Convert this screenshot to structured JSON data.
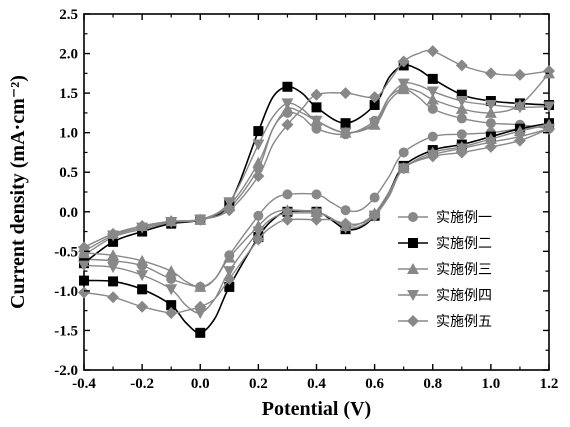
{
  "chart_data": {
    "type": "line",
    "xlabel": "Potential (V)",
    "ylabel": "Current density (mA·cm⁻²)",
    "xlim": [
      -0.4,
      1.2
    ],
    "ylim": [
      -2.0,
      2.5
    ],
    "xticks": [
      "-0.4",
      "-0.2",
      "0.0",
      "0.2",
      "0.4",
      "0.6",
      "0.8",
      "1.0",
      "1.2"
    ],
    "yticks": [
      "-2.0",
      "-1.5",
      "-1.0",
      "-0.5",
      "0.0",
      "0.5",
      "1.0",
      "1.5",
      "2.0",
      "2.5"
    ],
    "legend_position": "right",
    "grid": false,
    "series": [
      {
        "name": "实施例一",
        "marker": "circle",
        "color": "#888888",
        "forward": [
          [
            -0.4,
            -0.55
          ],
          [
            -0.3,
            -0.32
          ],
          [
            -0.2,
            -0.22
          ],
          [
            -0.1,
            -0.14
          ],
          [
            0.0,
            -0.1
          ],
          [
            0.1,
            0.05
          ],
          [
            0.2,
            0.55
          ],
          [
            0.25,
            1.05
          ],
          [
            0.3,
            1.25
          ],
          [
            0.35,
            1.2
          ],
          [
            0.4,
            1.05
          ],
          [
            0.5,
            0.98
          ],
          [
            0.6,
            1.15
          ],
          [
            0.65,
            1.45
          ],
          [
            0.7,
            1.55
          ],
          [
            0.75,
            1.45
          ],
          [
            0.8,
            1.3
          ],
          [
            0.9,
            1.18
          ],
          [
            1.0,
            1.12
          ],
          [
            1.1,
            1.1
          ],
          [
            1.2,
            1.05
          ]
        ],
        "reverse": [
          [
            1.2,
            1.08
          ],
          [
            1.1,
            1.05
          ],
          [
            1.0,
            1.0
          ],
          [
            0.9,
            0.98
          ],
          [
            0.8,
            0.95
          ],
          [
            0.7,
            0.75
          ],
          [
            0.65,
            0.45
          ],
          [
            0.6,
            0.18
          ],
          [
            0.55,
            0.02
          ],
          [
            0.5,
            0.02
          ],
          [
            0.45,
            0.12
          ],
          [
            0.4,
            0.22
          ],
          [
            0.3,
            0.22
          ],
          [
            0.25,
            0.15
          ],
          [
            0.2,
            -0.05
          ],
          [
            0.1,
            -0.55
          ],
          [
            0.05,
            -0.85
          ],
          [
            0.0,
            -0.95
          ],
          [
            -0.1,
            -0.85
          ],
          [
            -0.2,
            -0.68
          ],
          [
            -0.3,
            -0.62
          ],
          [
            -0.4,
            -0.6
          ]
        ]
      },
      {
        "name": "实施例二",
        "marker": "square",
        "color": "#000000",
        "forward": [
          [
            -0.4,
            -0.65
          ],
          [
            -0.3,
            -0.38
          ],
          [
            -0.2,
            -0.25
          ],
          [
            -0.1,
            -0.15
          ],
          [
            0.0,
            -0.1
          ],
          [
            0.1,
            0.1
          ],
          [
            0.2,
            1.02
          ],
          [
            0.25,
            1.45
          ],
          [
            0.3,
            1.58
          ],
          [
            0.35,
            1.5
          ],
          [
            0.4,
            1.32
          ],
          [
            0.5,
            1.12
          ],
          [
            0.6,
            1.35
          ],
          [
            0.65,
            1.7
          ],
          [
            0.7,
            1.85
          ],
          [
            0.75,
            1.8
          ],
          [
            0.8,
            1.68
          ],
          [
            0.9,
            1.48
          ],
          [
            1.0,
            1.4
          ],
          [
            1.1,
            1.37
          ],
          [
            1.2,
            1.35
          ]
        ],
        "reverse": [
          [
            1.2,
            1.12
          ],
          [
            1.1,
            1.05
          ],
          [
            1.0,
            0.95
          ],
          [
            0.9,
            0.85
          ],
          [
            0.8,
            0.78
          ],
          [
            0.7,
            0.58
          ],
          [
            0.65,
            0.25
          ],
          [
            0.6,
            -0.05
          ],
          [
            0.55,
            -0.2
          ],
          [
            0.5,
            -0.22
          ],
          [
            0.45,
            -0.1
          ],
          [
            0.4,
            0.0
          ],
          [
            0.3,
            0.0
          ],
          [
            0.25,
            -0.1
          ],
          [
            0.2,
            -0.32
          ],
          [
            0.1,
            -0.95
          ],
          [
            0.05,
            -1.35
          ],
          [
            0.0,
            -1.53
          ],
          [
            -0.05,
            -1.4
          ],
          [
            -0.1,
            -1.18
          ],
          [
            -0.2,
            -0.98
          ],
          [
            -0.3,
            -0.88
          ],
          [
            -0.4,
            -0.87
          ]
        ]
      },
      {
        "name": "实施例三",
        "marker": "triangle-up",
        "color": "#888888",
        "forward": [
          [
            -0.4,
            -0.45
          ],
          [
            -0.3,
            -0.28
          ],
          [
            -0.2,
            -0.18
          ],
          [
            -0.1,
            -0.12
          ],
          [
            0.0,
            -0.1
          ],
          [
            0.1,
            0.08
          ],
          [
            0.2,
            0.62
          ],
          [
            0.25,
            1.05
          ],
          [
            0.3,
            1.3
          ],
          [
            0.35,
            1.25
          ],
          [
            0.4,
            1.15
          ],
          [
            0.5,
            1.0
          ],
          [
            0.6,
            1.1
          ],
          [
            0.65,
            1.4
          ],
          [
            0.7,
            1.55
          ],
          [
            0.75,
            1.52
          ],
          [
            0.8,
            1.42
          ],
          [
            0.9,
            1.3
          ],
          [
            1.0,
            1.25
          ],
          [
            1.1,
            1.35
          ],
          [
            1.2,
            1.75
          ]
        ],
        "reverse": [
          [
            1.2,
            1.1
          ],
          [
            1.1,
            1.02
          ],
          [
            1.0,
            0.92
          ],
          [
            0.9,
            0.82
          ],
          [
            0.8,
            0.75
          ],
          [
            0.7,
            0.55
          ],
          [
            0.65,
            0.25
          ],
          [
            0.6,
            -0.02
          ],
          [
            0.55,
            -0.15
          ],
          [
            0.5,
            -0.18
          ],
          [
            0.45,
            -0.08
          ],
          [
            0.4,
            0.0
          ],
          [
            0.3,
            0.02
          ],
          [
            0.25,
            -0.02
          ],
          [
            0.2,
            -0.18
          ],
          [
            0.1,
            -0.58
          ],
          [
            0.05,
            -0.85
          ],
          [
            0.0,
            -0.95
          ],
          [
            -0.05,
            -0.88
          ],
          [
            -0.1,
            -0.75
          ],
          [
            -0.2,
            -0.62
          ],
          [
            -0.3,
            -0.55
          ],
          [
            -0.4,
            -0.52
          ]
        ]
      },
      {
        "name": "实施例四",
        "marker": "triangle-down",
        "color": "#888888",
        "forward": [
          [
            -0.4,
            -0.5
          ],
          [
            -0.3,
            -0.3
          ],
          [
            -0.2,
            -0.2
          ],
          [
            -0.1,
            -0.13
          ],
          [
            0.0,
            -0.1
          ],
          [
            0.1,
            0.12
          ],
          [
            0.2,
            0.85
          ],
          [
            0.25,
            1.2
          ],
          [
            0.3,
            1.37
          ],
          [
            0.35,
            1.3
          ],
          [
            0.4,
            1.15
          ],
          [
            0.5,
            1.0
          ],
          [
            0.6,
            1.12
          ],
          [
            0.65,
            1.45
          ],
          [
            0.7,
            1.62
          ],
          [
            0.75,
            1.6
          ],
          [
            0.8,
            1.52
          ],
          [
            0.9,
            1.4
          ],
          [
            1.0,
            1.35
          ],
          [
            1.1,
            1.32
          ],
          [
            1.2,
            1.33
          ]
        ],
        "reverse": [
          [
            1.2,
            1.05
          ],
          [
            1.1,
            0.95
          ],
          [
            1.0,
            0.88
          ],
          [
            0.9,
            0.8
          ],
          [
            0.8,
            0.72
          ],
          [
            0.7,
            0.55
          ],
          [
            0.65,
            0.22
          ],
          [
            0.6,
            -0.05
          ],
          [
            0.55,
            -0.18
          ],
          [
            0.5,
            -0.2
          ],
          [
            0.45,
            -0.08
          ],
          [
            0.4,
            -0.02
          ],
          [
            0.3,
            -0.02
          ],
          [
            0.25,
            -0.08
          ],
          [
            0.2,
            -0.25
          ],
          [
            0.1,
            -0.75
          ],
          [
            0.05,
            -1.1
          ],
          [
            0.0,
            -1.28
          ],
          [
            -0.05,
            -1.18
          ],
          [
            -0.1,
            -0.98
          ],
          [
            -0.2,
            -0.8
          ],
          [
            -0.3,
            -0.7
          ],
          [
            -0.4,
            -0.68
          ]
        ]
      },
      {
        "name": "实施例五",
        "marker": "diamond",
        "color": "#888888",
        "forward": [
          [
            -0.4,
            -0.45
          ],
          [
            -0.3,
            -0.28
          ],
          [
            -0.2,
            -0.18
          ],
          [
            -0.1,
            -0.12
          ],
          [
            0.0,
            -0.1
          ],
          [
            0.1,
            0.02
          ],
          [
            0.2,
            0.45
          ],
          [
            0.25,
            0.85
          ],
          [
            0.3,
            1.1
          ],
          [
            0.35,
            1.3
          ],
          [
            0.4,
            1.48
          ],
          [
            0.5,
            1.5
          ],
          [
            0.6,
            1.45
          ],
          [
            0.65,
            1.65
          ],
          [
            0.7,
            1.9
          ],
          [
            0.75,
            2.0
          ],
          [
            0.8,
            2.03
          ],
          [
            0.9,
            1.85
          ],
          [
            1.0,
            1.75
          ],
          [
            1.1,
            1.73
          ],
          [
            1.2,
            1.78
          ]
        ],
        "reverse": [
          [
            1.2,
            1.05
          ],
          [
            1.1,
            0.9
          ],
          [
            1.0,
            0.82
          ],
          [
            0.9,
            0.75
          ],
          [
            0.8,
            0.7
          ],
          [
            0.7,
            0.55
          ],
          [
            0.65,
            0.2
          ],
          [
            0.6,
            -0.05
          ],
          [
            0.55,
            -0.15
          ],
          [
            0.5,
            -0.15
          ],
          [
            0.45,
            -0.1
          ],
          [
            0.4,
            -0.1
          ],
          [
            0.3,
            -0.1
          ],
          [
            0.25,
            -0.18
          ],
          [
            0.2,
            -0.35
          ],
          [
            0.1,
            -0.85
          ],
          [
            0.05,
            -1.1
          ],
          [
            0.0,
            -1.2
          ],
          [
            -0.05,
            -1.25
          ],
          [
            -0.1,
            -1.28
          ],
          [
            -0.2,
            -1.2
          ],
          [
            -0.3,
            -1.08
          ],
          [
            -0.4,
            -1.02
          ]
        ]
      }
    ]
  }
}
